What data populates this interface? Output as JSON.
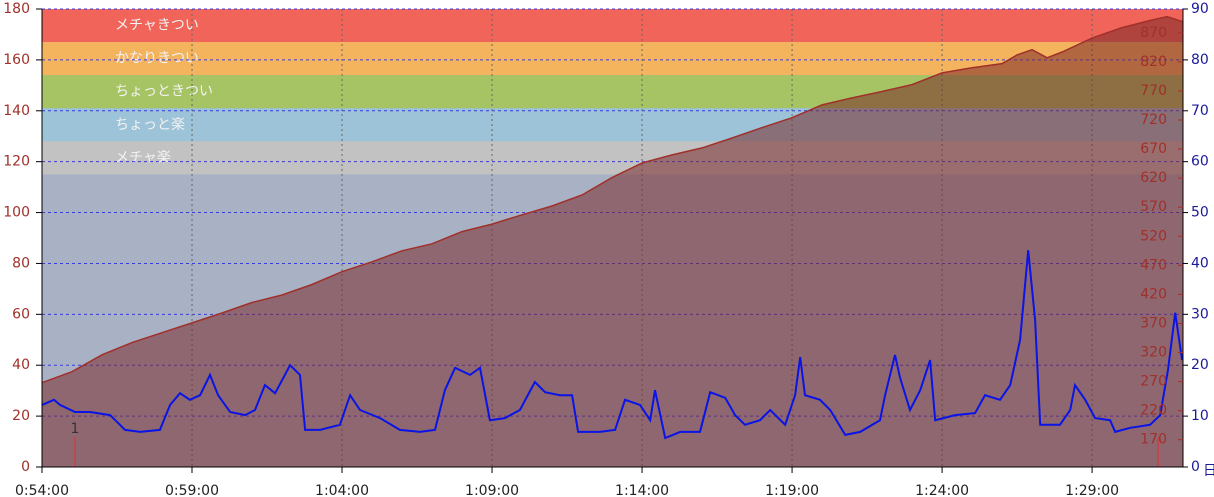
{
  "chart_data": {
    "type": "line",
    "xlim": [
      54,
      92.03
    ],
    "xticks": [
      {
        "value": 54,
        "label": "0:54:00"
      },
      {
        "value": 59,
        "label": "0:59:00"
      },
      {
        "value": 64,
        "label": "1:04:00"
      },
      {
        "value": 69,
        "label": "1:09:00"
      },
      {
        "value": 74,
        "label": "1:14:00"
      },
      {
        "value": 79,
        "label": "1:19:00"
      },
      {
        "value": 84,
        "label": "1:24:00"
      },
      {
        "value": 89,
        "label": "1:29:00"
      }
    ],
    "ylim": [
      0,
      180
    ],
    "yticks": [
      0,
      20,
      40,
      60,
      80,
      100,
      120,
      140,
      160,
      180
    ],
    "y2lim": [
      0,
      90
    ],
    "y2ticks": [
      0,
      10,
      20,
      30,
      40,
      50,
      60,
      70,
      80,
      90
    ],
    "y2_unit": "日",
    "y3lim": [
      123,
      911
    ],
    "y3ticks": [
      170,
      220,
      270,
      320,
      370,
      420,
      470,
      520,
      570,
      620,
      670,
      720,
      770,
      820,
      870
    ],
    "grid": true,
    "background_color": "#a9b1c5",
    "zones": [
      {
        "label": "メチャきつい",
        "from": 167,
        "to": 180,
        "color": "#f0645a"
      },
      {
        "label": "かなりきつい",
        "from": 154,
        "to": 167,
        "color": "#f4b45e"
      },
      {
        "label": "ちょっときつい",
        "from": 141,
        "to": 154,
        "color": "#a6c463"
      },
      {
        "label": "ちょっと楽",
        "from": 128,
        "to": 141,
        "color": "#9cc3d8"
      },
      {
        "label": "メチャ楽",
        "from": 115,
        "to": 128,
        "color": "#c2c2c2"
      }
    ],
    "markers": [
      {
        "x": 55.1,
        "label": "1"
      },
      {
        "x": 91.2
      }
    ],
    "series": [
      {
        "color": "#a0302a",
        "axis": "y3",
        "fill": true,
        "x": [
          54,
          55,
          56,
          57,
          58,
          59,
          60,
          61,
          62,
          63,
          64,
          65,
          66,
          67,
          68,
          69,
          70,
          71,
          72,
          73,
          74,
          75,
          76,
          77,
          78,
          79,
          80,
          81,
          82,
          83,
          84,
          85,
          86,
          86.5,
          87,
          87.5,
          88,
          89,
          90,
          91,
          91.5,
          92.03
        ],
        "values": [
          268,
          287,
          316,
          337,
          354,
          371,
          388,
          406,
          419,
          437,
          459,
          476,
          495,
          507,
          528,
          541,
          557,
          572,
          591,
          621,
          646,
          660,
          672,
          689,
          707,
          724,
          746,
          758,
          769,
          781,
          801,
          810,
          817,
          832,
          841,
          827,
          837,
          861,
          879,
          892,
          898,
          889
        ]
      },
      {
        "color": "#0a14e6",
        "axis": "y2",
        "x": [
          54.0,
          54.4,
          54.6,
          55.1,
          55.6,
          56.27,
          56.77,
          57.27,
          57.93,
          58.27,
          58.6,
          58.93,
          59.27,
          59.6,
          59.87,
          60.27,
          60.77,
          61.1,
          61.43,
          61.77,
          62.27,
          62.6,
          62.77,
          63.27,
          63.93,
          64.27,
          64.6,
          65.27,
          65.93,
          66.6,
          67.1,
          67.43,
          67.77,
          68.27,
          68.6,
          68.93,
          69.43,
          69.93,
          70.43,
          70.77,
          71.27,
          71.67,
          71.87,
          72.6,
          73.1,
          73.43,
          73.93,
          74.27,
          74.43,
          74.77,
          75.27,
          75.93,
          76.27,
          76.77,
          77.1,
          77.43,
          77.93,
          78.27,
          78.77,
          79.1,
          79.27,
          79.43,
          79.93,
          80.27,
          80.77,
          81.27,
          81.93,
          82.1,
          82.43,
          82.6,
          82.93,
          83.27,
          83.6,
          83.77,
          84.43,
          85.1,
          85.43,
          85.93,
          86.27,
          86.6,
          86.87,
          87.1,
          87.27,
          87.93,
          88.27,
          88.43,
          88.77,
          89.1,
          89.6,
          89.77,
          90.27,
          90.93,
          91.27,
          91.53,
          91.77,
          92.0
        ],
        "values": [
          12.2,
          13.2,
          12.2,
          10.8,
          10.8,
          10.2,
          7.3,
          6.9,
          7.3,
          12.2,
          14.5,
          13.2,
          14.1,
          18.1,
          14.1,
          10.8,
          10.2,
          11.2,
          16.1,
          14.5,
          20.0,
          18.1,
          7.3,
          7.3,
          8.3,
          14.1,
          11.2,
          9.6,
          7.3,
          6.9,
          7.3,
          15.1,
          19.5,
          18.1,
          19.5,
          9.2,
          9.6,
          11.2,
          16.7,
          14.7,
          14.1,
          14.1,
          6.9,
          6.9,
          7.3,
          13.2,
          12.2,
          9.2,
          15.1,
          5.7,
          6.9,
          6.9,
          14.7,
          13.6,
          10.2,
          8.3,
          9.2,
          11.2,
          8.3,
          14.1,
          21.6,
          14.1,
          13.2,
          11.2,
          6.3,
          6.9,
          9.2,
          14.1,
          22.0,
          17.5,
          11.2,
          15.1,
          21.0,
          9.2,
          10.2,
          10.6,
          14.1,
          13.2,
          16.1,
          25.0,
          42.6,
          28.9,
          8.3,
          8.3,
          11.2,
          16.1,
          13.2,
          9.6,
          9.2,
          6.9,
          7.7,
          8.3,
          10.2,
          19.1,
          30.3,
          21.0
        ]
      }
    ]
  }
}
